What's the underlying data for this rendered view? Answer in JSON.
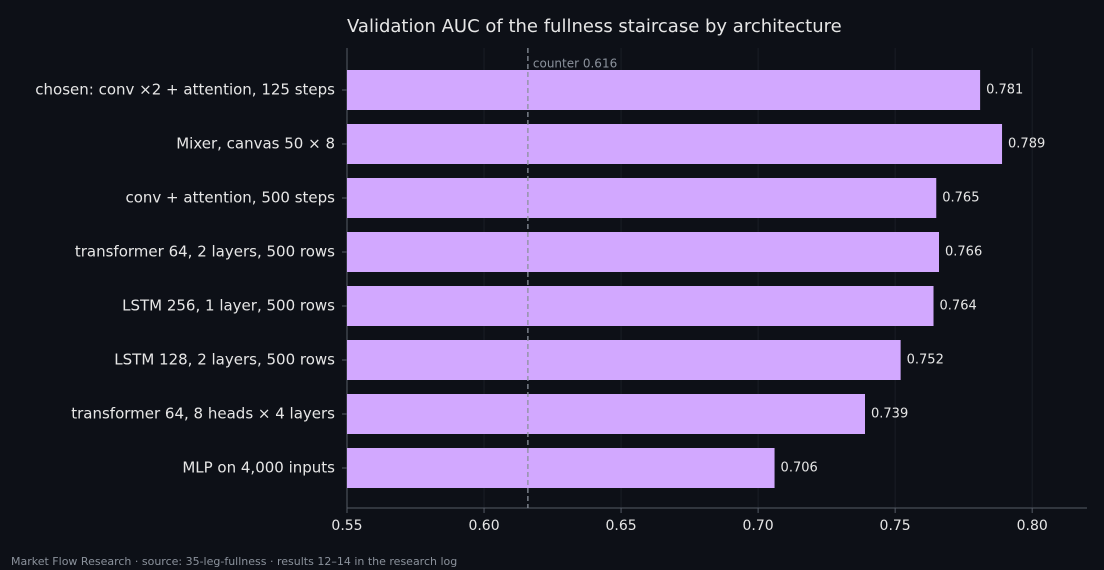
{
  "chart_data": {
    "type": "barh",
    "title": "Validation AUC of the fullness staircase by architecture",
    "categories": [
      "chosen: conv ×2 + attention, 125 steps",
      "Mixer, canvas 50 × 8",
      "conv + attention, 500 steps",
      "transformer 64, 2 layers, 500 rows",
      "LSTM 256, 1 layer, 500 rows",
      "LSTM 128, 2 layers, 500 rows",
      "transformer 64, 8 heads × 4 layers",
      "MLP on 4,000 inputs"
    ],
    "values": [
      0.781,
      0.789,
      0.765,
      0.766,
      0.764,
      0.752,
      0.739,
      0.706
    ],
    "color": "#d2a8ff",
    "xlim": [
      0.55,
      0.82
    ],
    "xticks": [
      0.55,
      {
        "value": 0.6,
        "label": "0.60"
      },
      0.65,
      {
        "value": 0.7,
        "label": "0.70"
      },
      0.75,
      {
        "value": 0.8,
        "label": "0.80"
      }
    ],
    "grid": true,
    "reference": {
      "value": 0.616,
      "label": "counter 0.616"
    },
    "footer": "Market Flow Research · source: 35-leg-fullness · results 12–14 in the research log"
  }
}
